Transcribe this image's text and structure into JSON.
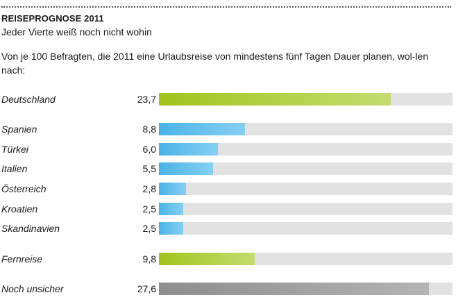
{
  "title": "REISEPROGNOSE 2011",
  "subtitle": "Jeder Vierte weiß noch nicht wohin",
  "intro": "Von je 100 Befragten, die 2011 eine Urlaubsreise von mindestens fünf Tagen Dauer planen, wol-len nach:",
  "colors": {
    "green": "#a3c31d",
    "blue": "#4ab3e6",
    "gray": "#8e8e8e",
    "track": "#e2e2e2"
  },
  "chart_data": {
    "type": "bar",
    "orientation": "horizontal",
    "xlim": [
      0,
      30
    ],
    "categories": [
      "Deutschland",
      "Spanien",
      "Türkei",
      "Italien",
      "Österreich",
      "Kroatien",
      "Skandinavien",
      "Fernreise",
      "Noch unsicher"
    ],
    "values": [
      23.7,
      8.8,
      6.0,
      5.5,
      2.8,
      2.5,
      2.5,
      9.8,
      27.6
    ],
    "value_labels": [
      "23,7",
      "8,8",
      "6,0",
      "5,5",
      "2,8",
      "2,5",
      "2,5",
      "9,8",
      "27,6"
    ],
    "bar_colors": [
      "green",
      "blue",
      "blue",
      "blue",
      "blue",
      "blue",
      "blue",
      "green",
      "gray"
    ]
  }
}
